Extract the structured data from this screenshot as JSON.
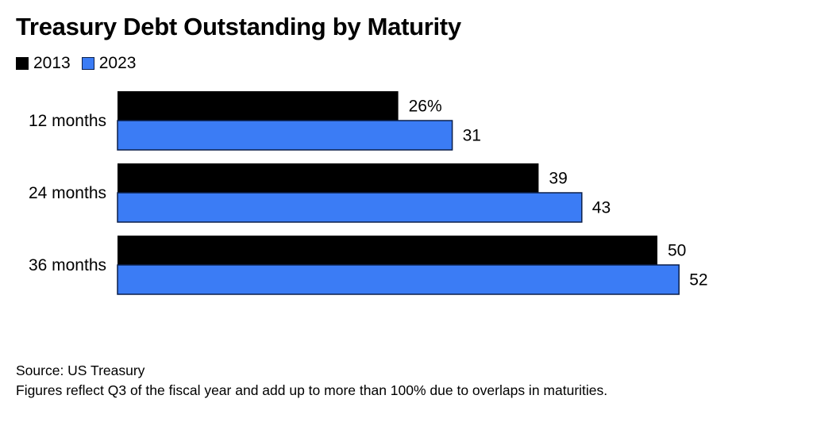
{
  "chart_data": {
    "type": "bar",
    "orientation": "horizontal",
    "title": "Treasury Debt Outstanding by Maturity",
    "categories": [
      "12 months",
      "24 months",
      "36 months"
    ],
    "series": [
      {
        "name": "2013",
        "values": [
          26,
          39,
          50
        ],
        "color": "#000000"
      },
      {
        "name": "2023",
        "values": [
          31,
          43,
          52
        ],
        "color": "#3b7cf5"
      }
    ],
    "data_labels": [
      [
        "26%",
        "39",
        "50"
      ],
      [
        "31",
        "43",
        "52"
      ]
    ],
    "xlim": [
      0,
      60
    ],
    "grid": false,
    "legend_position": "top-left"
  },
  "footer": {
    "source": "Source: US Treasury",
    "note": "Figures reflect Q3 of the fiscal year and add up to more than 100% due to overlaps in maturities."
  }
}
